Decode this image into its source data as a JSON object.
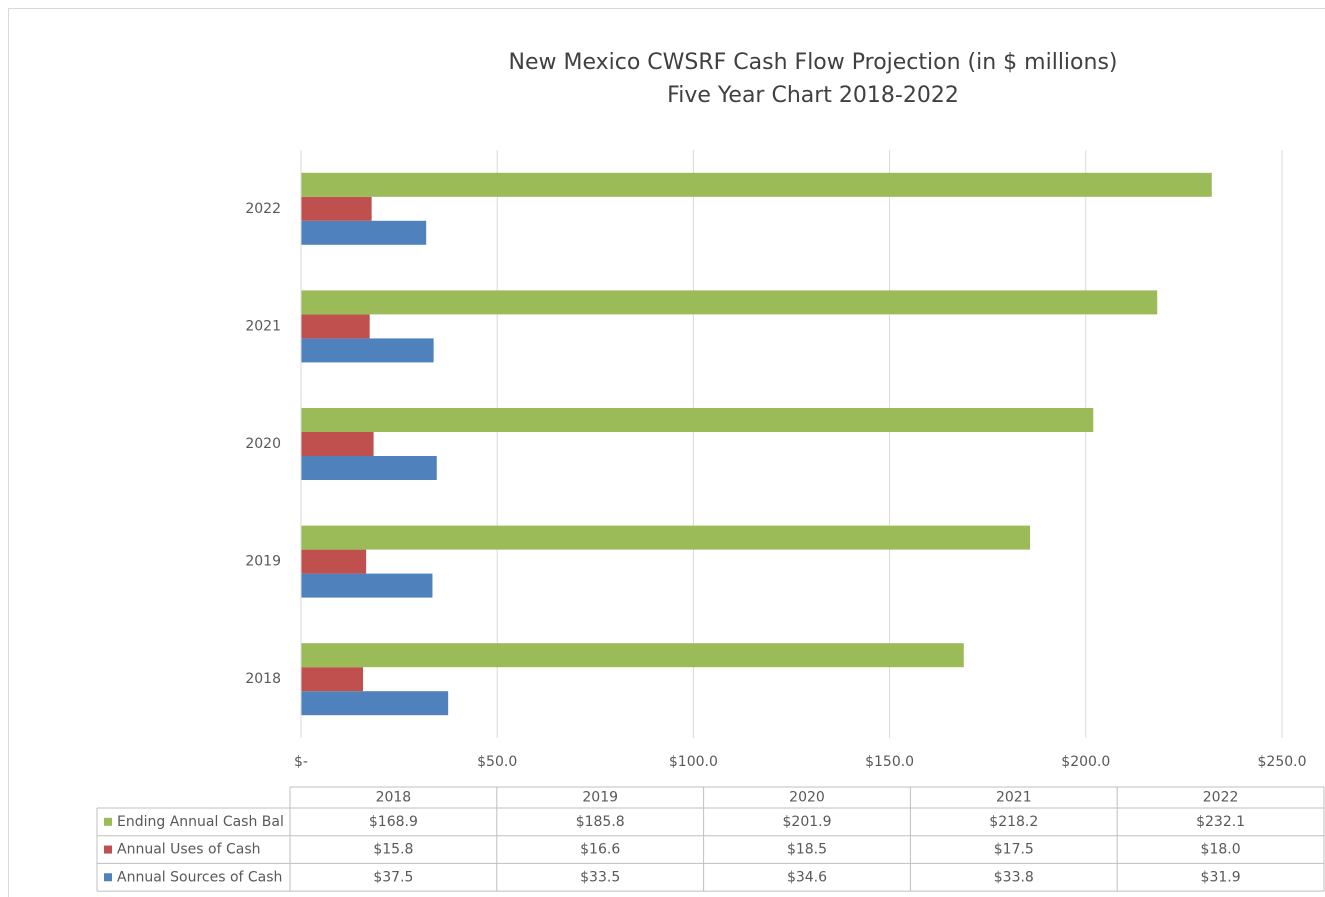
{
  "chart_data": {
    "type": "bar",
    "orientation": "horizontal",
    "title": "New Mexico CWSRF Cash Flow Projection (in $ millions)",
    "subtitle": "Five Year Chart 2018-2022",
    "categories": [
      "2018",
      "2019",
      "2020",
      "2021",
      "2022"
    ],
    "series": [
      {
        "name": "Annual Sources of Cash",
        "color": "#4f81bd",
        "values": [
          37.5,
          33.5,
          34.6,
          33.8,
          31.9
        ],
        "value_labels": [
          "$37.5",
          "$33.5",
          "$34.6",
          "$33.8",
          "$31.9"
        ]
      },
      {
        "name": "Annual Uses of Cash",
        "color": "#c0504d",
        "values": [
          15.8,
          16.6,
          18.5,
          17.5,
          18.0
        ],
        "value_labels": [
          "$15.8",
          "$16.6",
          "$18.5",
          "$17.5",
          "$18.0"
        ]
      },
      {
        "name": "Ending Annual Cash Bal",
        "color": "#9bbb59",
        "values": [
          168.9,
          185.8,
          201.9,
          218.2,
          232.1
        ],
        "value_labels": [
          "$168.9",
          "$185.8",
          "$201.9",
          "$218.2",
          "$232.1"
        ]
      }
    ],
    "xlim": [
      0,
      250
    ],
    "xticks": [
      {
        "value": 0,
        "label": "$-"
      },
      {
        "value": 50,
        "label": "$50.0"
      },
      {
        "value": 100,
        "label": "$100.0"
      },
      {
        "value": 150,
        "label": "$150.0"
      },
      {
        "value": 200,
        "label": "$200.0"
      },
      {
        "value": 250,
        "label": "$250.0"
      }
    ],
    "grid": true
  }
}
